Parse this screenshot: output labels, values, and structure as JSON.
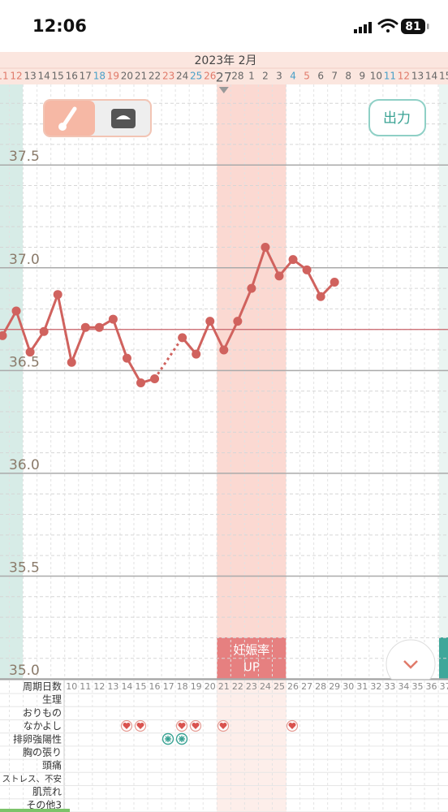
{
  "status_bar": {
    "time": "12:06",
    "battery": "81"
  },
  "header": {
    "month": "2023年 2月"
  },
  "buttons": {
    "export": "出力"
  },
  "chart_data": {
    "type": "line",
    "categories": [
      "11",
      "12",
      "13",
      "14",
      "15",
      "16",
      "17",
      "18",
      "19",
      "20",
      "21",
      "22",
      "23",
      "24",
      "25",
      "26",
      "27",
      "28",
      "1",
      "2",
      "3",
      "4",
      "5",
      "6",
      "7",
      "8",
      "9",
      "10",
      "11",
      "12",
      "13",
      "14",
      "15"
    ],
    "category_colors": [
      "#e07a6a",
      "#e07a6a",
      "#666",
      "#666",
      "#666",
      "#666",
      "#666",
      "#4aa0c8",
      "#e07a6a",
      "#666",
      "#666",
      "#666",
      "#e07a6a",
      "#666",
      "#4aa0c8",
      "#e07a6a",
      "#666",
      "#666",
      "#666",
      "#666",
      "#666",
      "#4aa0c8",
      "#e07a6a",
      "#666",
      "#666",
      "#666",
      "#666",
      "#666",
      "#4aa0c8",
      "#e07a6a",
      "#666",
      "#666",
      "#666"
    ],
    "today": "27",
    "values": [
      36.67,
      36.79,
      36.59,
      36.69,
      36.87,
      36.54,
      36.71,
      36.71,
      36.75,
      36.56,
      36.44,
      36.46,
      null,
      36.66,
      36.58,
      36.74,
      36.6,
      36.74,
      36.9,
      37.1,
      36.96,
      37.04,
      36.99,
      36.86,
      36.93,
      null,
      null,
      null,
      null,
      null,
      null,
      null,
      null
    ],
    "color": "#d0625e",
    "ylim": [
      35.0,
      37.9
    ],
    "yticks": [
      {
        "value": 35,
        "label": "35.0"
      },
      35.5,
      {
        "value": 36,
        "label": "36.0"
      },
      36.5,
      {
        "value": 37,
        "label": "37.0"
      },
      37.5
    ],
    "grid": true,
    "minor_grid": true,
    "coverline": 36.7,
    "coverline_color": "#c9636a",
    "band": {
      "start": "27",
      "end": "3",
      "label": [
        "妊娠率",
        "UP"
      ]
    }
  },
  "table": {
    "row_labels": [
      "周期日数",
      "生理",
      "おりもの",
      "なかよし",
      "排卵強陽性",
      "胸の張り",
      "頭痛",
      "ストレス、不安",
      "肌荒れ",
      "その他3"
    ],
    "cycle_days": [
      "10",
      "11",
      "12",
      "13",
      "14",
      "15",
      "16",
      "17",
      "18",
      "19",
      "20",
      "21",
      "22",
      "23",
      "24",
      "25",
      "26",
      "27",
      "28",
      "29",
      "30",
      "31",
      "32",
      "33",
      "34",
      "35",
      "36",
      "37"
    ]
  }
}
